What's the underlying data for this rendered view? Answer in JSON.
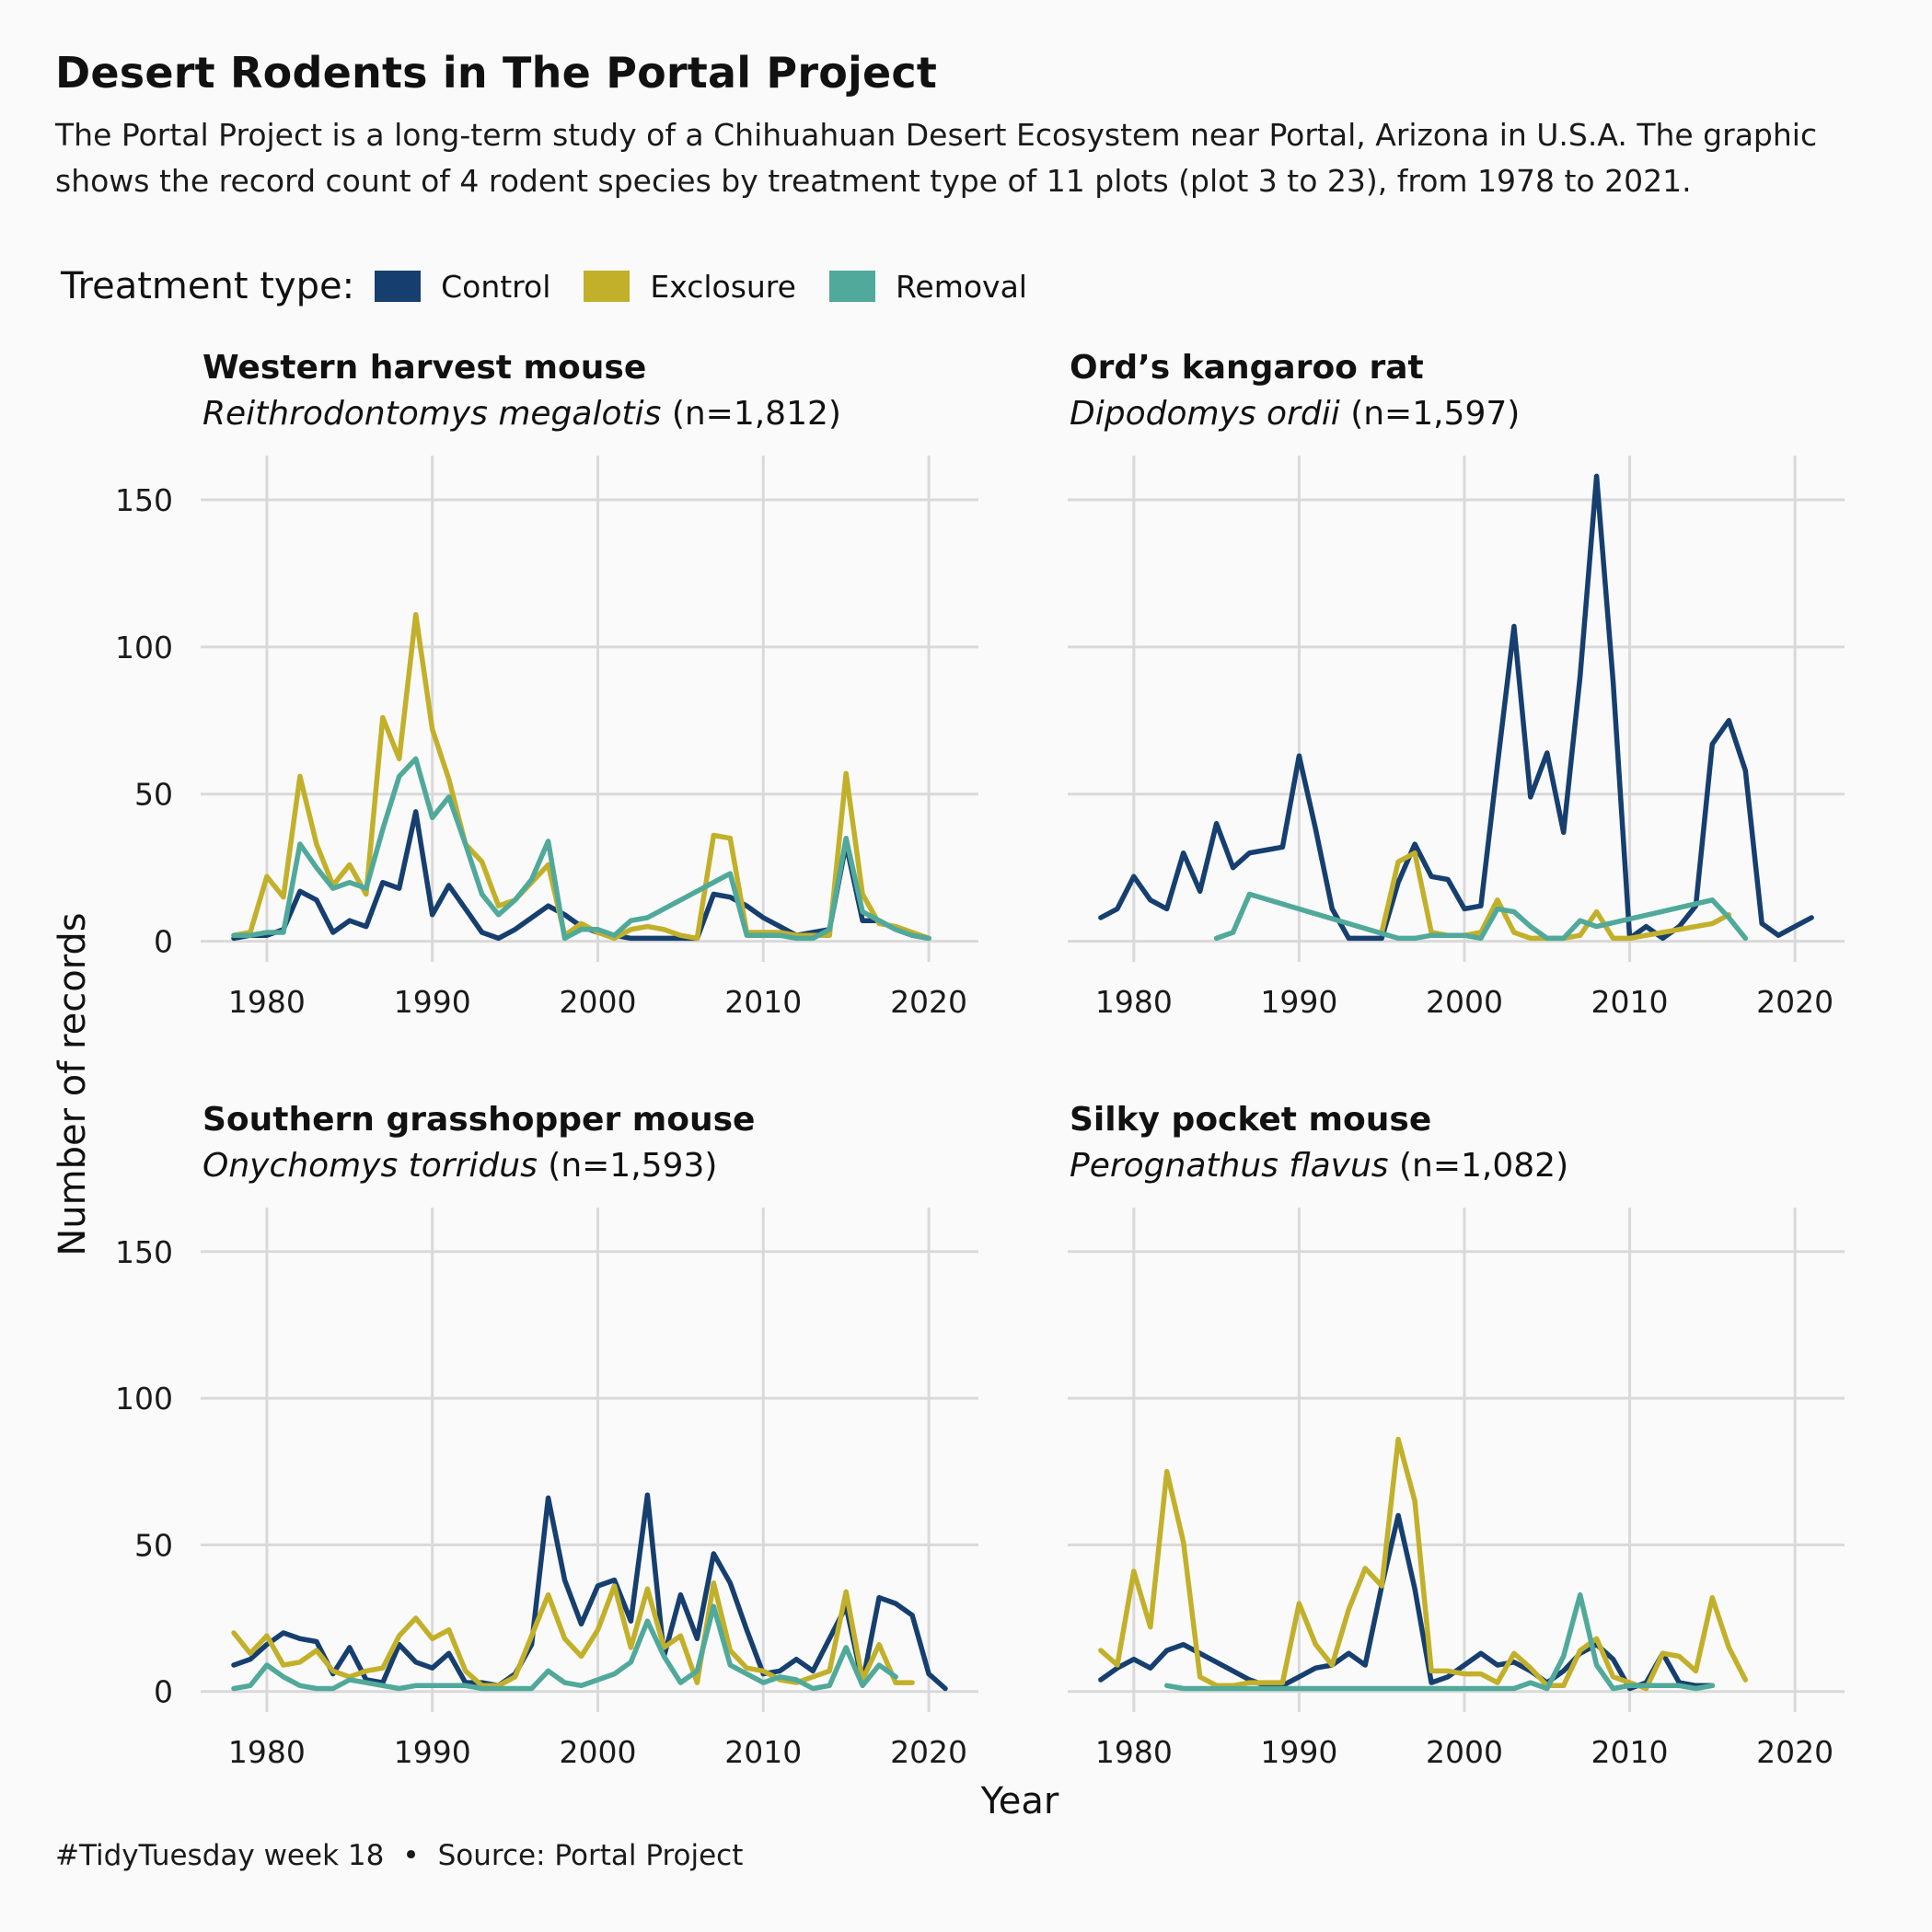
{
  "header": {
    "title": "Desert Rodents in The Portal Project",
    "subtitle": "The Portal Project is a long-term study of a Chihuahuan Desert Ecosystem near Portal, Arizona in U.S.A. The graphic shows the record count of 4 rodent species by treatment type of 11 plots (plot 3 to 23), from 1978 to 2021."
  },
  "legend": {
    "title": "Treatment type:",
    "items": [
      {
        "label": "Control",
        "color": "#163f6f"
      },
      {
        "label": "Exclosure",
        "color": "#c2b02a"
      },
      {
        "label": "Removal",
        "color": "#50a99a"
      }
    ]
  },
  "caption": {
    "tag": "#TidyTuesday week 18",
    "separator": "•",
    "source": "Source: Portal Project"
  },
  "chart_data": {
    "type": "line",
    "xlabel": "Year",
    "ylabel": "Number of records",
    "xlim": [
      1976,
      2023
    ],
    "ylim": [
      -7,
      165
    ],
    "x_ticks": [
      1980,
      1990,
      2000,
      2010,
      2020
    ],
    "y_ticks": [
      0,
      50,
      100,
      150
    ],
    "grid": true,
    "legend_position": "top-left",
    "colors": {
      "Control": "#163f6f",
      "Exclosure": "#c2b02a",
      "Removal": "#50a99a"
    },
    "panels": [
      {
        "title": "Western harvest mouse",
        "species": "Reithrodontomys megalotis",
        "count_label": "(n=1,812)",
        "series": [
          {
            "name": "Control",
            "x": [
              1978,
              1979,
              1980,
              1981,
              1982,
              1983,
              1984,
              1985,
              1986,
              1987,
              1988,
              1989,
              1990,
              1991,
              1992,
              1993,
              1994,
              1995,
              1996,
              1997,
              1998,
              1999,
              2000,
              2001,
              2002,
              2003,
              2004,
              2005,
              2006,
              2007,
              2008,
              2009,
              2010,
              2011,
              2012,
              2013,
              2014,
              2015,
              2016,
              2017,
              2018,
              2019,
              2020
            ],
            "y": [
              1,
              2,
              2,
              4,
              17,
              14,
              3,
              7,
              5,
              20,
              18,
              44,
              9,
              19,
              11,
              3,
              1,
              4,
              8,
              12,
              9,
              5,
              3,
              2,
              1,
              1,
              1,
              1,
              1,
              16,
              15,
              12,
              8,
              5,
              2,
              3,
              4,
              33,
              7,
              7,
              4,
              2,
              1
            ]
          },
          {
            "name": "Exclosure",
            "x": [
              1978,
              1979,
              1980,
              1981,
              1982,
              1983,
              1984,
              1985,
              1986,
              1987,
              1988,
              1989,
              1990,
              1991,
              1992,
              1993,
              1994,
              1995,
              1996,
              1997,
              1998,
              1999,
              2000,
              2001,
              2002,
              2003,
              2004,
              2005,
              2006,
              2007,
              2008,
              2009,
              2010,
              2011,
              2012,
              2013,
              2014,
              2015,
              2016,
              2017,
              2018,
              2019,
              2020
            ],
            "y": [
              2,
              3,
              22,
              15,
              56,
              33,
              19,
              26,
              16,
              76,
              62,
              111,
              72,
              55,
              33,
              27,
              12,
              14,
              20,
              26,
              2,
              6,
              3,
              1,
              4,
              5,
              4,
              2,
              1,
              36,
              35,
              3,
              3,
              3,
              2,
              2,
              2,
              57,
              16,
              6,
              5,
              3,
              1
            ]
          },
          {
            "name": "Removal",
            "x": [
              1978,
              1979,
              1980,
              1981,
              1982,
              1983,
              1984,
              1985,
              1986,
              1987,
              1988,
              1989,
              1990,
              1991,
              1992,
              1993,
              1994,
              1995,
              1996,
              1997,
              1998,
              1999,
              2000,
              2001,
              2002,
              2003,
              2008,
              2009,
              2010,
              2011,
              2012,
              2013,
              2014,
              2015,
              2016,
              2017,
              2018,
              2019,
              2020
            ],
            "y": [
              2,
              2,
              3,
              3,
              33,
              25,
              18,
              20,
              18,
              38,
              56,
              62,
              42,
              49,
              33,
              16,
              9,
              14,
              21,
              34,
              1,
              4,
              4,
              2,
              7,
              8,
              23,
              2,
              2,
              2,
              1,
              1,
              4,
              35,
              10,
              7,
              4,
              2,
              1
            ]
          }
        ]
      },
      {
        "title": "Ord’s kangaroo rat",
        "species": "Dipodomys ordii",
        "count_label": "(n=1,597)",
        "series": [
          {
            "name": "Control",
            "x": [
              1978,
              1979,
              1980,
              1981,
              1982,
              1983,
              1984,
              1985,
              1986,
              1987,
              1988,
              1989,
              1990,
              1991,
              1992,
              1993,
              1994,
              1995,
              1996,
              1997,
              1998,
              1999,
              2000,
              2001,
              2002,
              2003,
              2004,
              2005,
              2006,
              2007,
              2008,
              2009,
              2010,
              2011,
              2012,
              2013,
              2014,
              2015,
              2016,
              2017,
              2018,
              2019,
              2020,
              2021
            ],
            "y": [
              8,
              11,
              22,
              14,
              11,
              30,
              17,
              40,
              25,
              30,
              31,
              32,
              63,
              38,
              11,
              1,
              1,
              1,
              20,
              33,
              22,
              21,
              11,
              12,
              60,
              107,
              49,
              64,
              37,
              90,
              158,
              88,
              1,
              5,
              1,
              5,
              12,
              67,
              75,
              58,
              6,
              2,
              5,
              8
            ]
          },
          {
            "name": "Exclosure",
            "x": [
              1995,
              1996,
              1997,
              1998,
              1999,
              2000,
              2001,
              2002,
              2003,
              2004,
              2005,
              2006,
              2007,
              2008,
              2009,
              2010,
              2011,
              2012,
              2013,
              2014,
              2015,
              2016
            ],
            "y": [
              3,
              27,
              30,
              3,
              2,
              2,
              3,
              14,
              3,
              1,
              1,
              1,
              2,
              10,
              1,
              1,
              2,
              3,
              4,
              5,
              6,
              9
            ]
          },
          {
            "name": "Removal",
            "x": [
              1985,
              1986,
              1987,
              1996,
              1997,
              1998,
              1999,
              2000,
              2001,
              2002,
              2003,
              2004,
              2005,
              2006,
              2007,
              2008,
              2015,
              2016,
              2017
            ],
            "y": [
              1,
              3,
              16,
              1,
              1,
              2,
              2,
              2,
              1,
              11,
              10,
              5,
              1,
              1,
              7,
              5,
              14,
              8,
              1
            ]
          }
        ]
      },
      {
        "title": "Southern grasshopper mouse",
        "species": "Onychomys torridus",
        "count_label": "(n=1,593)",
        "series": [
          {
            "name": "Control",
            "x": [
              1978,
              1979,
              1980,
              1981,
              1982,
              1983,
              1984,
              1985,
              1986,
              1987,
              1988,
              1989,
              1990,
              1991,
              1992,
              1993,
              1994,
              1995,
              1996,
              1997,
              1998,
              1999,
              2000,
              2001,
              2002,
              2003,
              2004,
              2005,
              2006,
              2007,
              2008,
              2009,
              2010,
              2011,
              2012,
              2013,
              2014,
              2015,
              2016,
              2017,
              2018,
              2019,
              2020,
              2021
            ],
            "y": [
              9,
              11,
              16,
              20,
              18,
              17,
              6,
              15,
              4,
              3,
              16,
              10,
              8,
              13,
              3,
              3,
              2,
              6,
              16,
              66,
              38,
              23,
              36,
              38,
              24,
              67,
              12,
              33,
              18,
              47,
              37,
              21,
              6,
              7,
              11,
              7,
              18,
              29,
              3,
              32,
              30,
              26,
              6,
              1
            ]
          },
          {
            "name": "Exclosure",
            "x": [
              1978,
              1979,
              1980,
              1981,
              1982,
              1983,
              1984,
              1985,
              1986,
              1987,
              1988,
              1989,
              1990,
              1991,
              1992,
              1993,
              1994,
              1995,
              1996,
              1997,
              1998,
              1999,
              2000,
              2001,
              2002,
              2003,
              2004,
              2005,
              2006,
              2007,
              2008,
              2009,
              2010,
              2011,
              2012,
              2013,
              2014,
              2015,
              2016,
              2017,
              2018,
              2019
            ],
            "y": [
              20,
              13,
              19,
              9,
              10,
              14,
              7,
              5,
              7,
              8,
              19,
              25,
              18,
              21,
              7,
              2,
              2,
              5,
              19,
              33,
              18,
              12,
              21,
              36,
              15,
              35,
              15,
              19,
              3,
              37,
              14,
              8,
              7,
              4,
              3,
              5,
              7,
              34,
              4,
              16,
              3,
              3
            ]
          },
          {
            "name": "Removal",
            "x": [
              1978,
              1979,
              1980,
              1981,
              1982,
              1983,
              1984,
              1985,
              1986,
              1987,
              1988,
              1989,
              1990,
              1991,
              1992,
              1993,
              1994,
              1995,
              1996,
              1997,
              1998,
              1999,
              2000,
              2001,
              2002,
              2003,
              2004,
              2005,
              2006,
              2007,
              2008,
              2009,
              2010,
              2011,
              2012,
              2013,
              2014,
              2015,
              2016,
              2017,
              2018
            ],
            "y": [
              1,
              2,
              9,
              5,
              2,
              1,
              1,
              4,
              3,
              2,
              1,
              2,
              2,
              2,
              2,
              1,
              1,
              1,
              1,
              7,
              3,
              2,
              4,
              6,
              10,
              24,
              12,
              3,
              7,
              29,
              9,
              6,
              3,
              5,
              4,
              1,
              2,
              15,
              2,
              9,
              5
            ]
          }
        ]
      },
      {
        "title": "Silky pocket mouse",
        "species": "Perognathus flavus",
        "count_label": "(n=1,082)",
        "series": [
          {
            "name": "Control",
            "x": [
              1978,
              1979,
              1980,
              1981,
              1982,
              1983,
              1984,
              1985,
              1986,
              1987,
              1988,
              1989,
              1990,
              1991,
              1992,
              1993,
              1994,
              1995,
              1996,
              1997,
              1998,
              1999,
              2000,
              2001,
              2002,
              2003,
              2004,
              2005,
              2006,
              2007,
              2008,
              2009,
              2010,
              2011,
              2012,
              2013,
              2014,
              2015
            ],
            "y": [
              4,
              8,
              11,
              8,
              14,
              16,
              13,
              10,
              7,
              4,
              2,
              2,
              5,
              8,
              9,
              13,
              9,
              36,
              60,
              35,
              3,
              5,
              9,
              13,
              9,
              10,
              7,
              3,
              7,
              13,
              16,
              11,
              1,
              3,
              13,
              3,
              2,
              2
            ]
          },
          {
            "name": "Exclosure",
            "x": [
              1978,
              1979,
              1980,
              1981,
              1982,
              1983,
              1984,
              1985,
              1986,
              1987,
              1988,
              1989,
              1990,
              1991,
              1992,
              1993,
              1994,
              1995,
              1996,
              1997,
              1998,
              1999,
              2000,
              2001,
              2002,
              2003,
              2004,
              2005,
              2006,
              2007,
              2008,
              2009,
              2010,
              2011,
              2012,
              2013,
              2014,
              2015,
              2016,
              2017
            ],
            "y": [
              14,
              9,
              41,
              22,
              75,
              51,
              5,
              2,
              2,
              3,
              3,
              3,
              30,
              16,
              9,
              28,
              42,
              36,
              86,
              65,
              7,
              7,
              6,
              6,
              3,
              13,
              8,
              2,
              2,
              14,
              18,
              5,
              3,
              1,
              13,
              12,
              7,
              32,
              15,
              4
            ]
          },
          {
            "name": "Removal",
            "x": [
              1982,
              1983,
              1990,
              1995,
              2000,
              2003,
              2004,
              2005,
              2006,
              2007,
              2008,
              2009,
              2010,
              2011,
              2012,
              2013,
              2014,
              2015
            ],
            "y": [
              2,
              1,
              1,
              1,
              1,
              1,
              3,
              1,
              12,
              33,
              9,
              1,
              2,
              2,
              2,
              2,
              1,
              2
            ]
          }
        ]
      }
    ]
  }
}
